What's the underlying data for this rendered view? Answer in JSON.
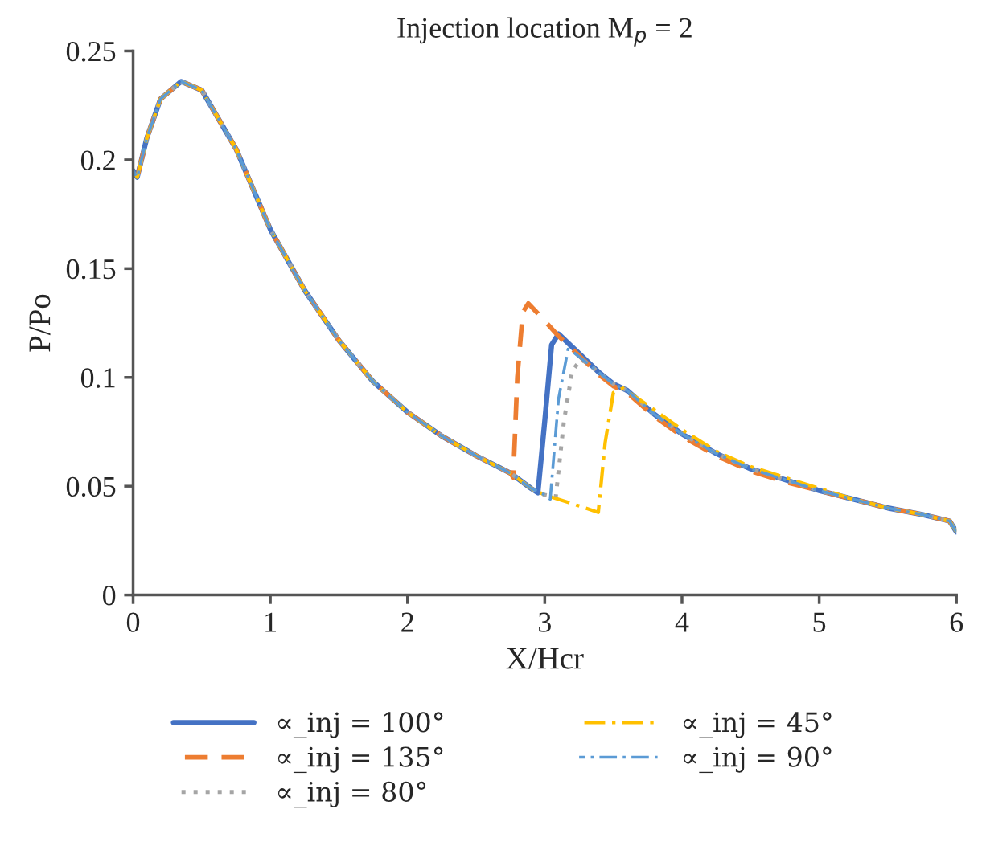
{
  "chart_data": {
    "type": "line",
    "title": "Injection location M$_{p}$ = 2",
    "xlabel": "X/Hcr",
    "ylabel": "P/Po",
    "xlim": [
      0,
      6
    ],
    "xticks": [
      0,
      1,
      2,
      3,
      4,
      5,
      6
    ],
    "ylim": [
      0,
      0.25
    ],
    "yticks": [
      0,
      0.05,
      0.1,
      0.15,
      0.2,
      0.25
    ],
    "grid": false,
    "legend": "bottom",
    "series": [
      {
        "name": "∝_inj = 100°",
        "color": "#4472c4",
        "line_style": "solid",
        "x": [
          0,
          0.03,
          0.1,
          0.2,
          0.35,
          0.5,
          0.75,
          1,
          1.25,
          1.5,
          1.75,
          2,
          2.25,
          2.5,
          2.75,
          2.9,
          2.95,
          3.0,
          3.05,
          3.1,
          3.2,
          3.3,
          3.4,
          3.5,
          3.6,
          3.8,
          4,
          4.25,
          4.5,
          4.75,
          5,
          5.25,
          5.5,
          5.75,
          5.95,
          6
        ],
        "values": [
          0.195,
          0.192,
          0.21,
          0.228,
          0.236,
          0.232,
          0.205,
          0.168,
          0.14,
          0.117,
          0.098,
          0.084,
          0.073,
          0.064,
          0.056,
          0.049,
          0.047,
          0.08,
          0.115,
          0.12,
          0.114,
          0.108,
          0.102,
          0.097,
          0.094,
          0.083,
          0.074,
          0.065,
          0.058,
          0.053,
          0.048,
          0.044,
          0.04,
          0.037,
          0.034,
          0.029
        ]
      },
      {
        "name": "∝_inj = 135°",
        "color": "#ed7d31",
        "line_style": "dashed",
        "x": [
          0,
          0.03,
          0.1,
          0.2,
          0.35,
          0.5,
          0.75,
          1,
          1.25,
          1.5,
          1.75,
          2,
          2.25,
          2.5,
          2.75,
          2.77,
          2.8,
          2.84,
          2.88,
          3.0,
          3.1,
          3.2,
          3.3,
          3.4,
          3.5,
          3.6,
          3.8,
          4,
          4.25,
          4.5,
          4.75,
          5,
          5.25,
          5.5,
          5.75,
          5.95,
          6
        ],
        "values": [
          0.195,
          0.192,
          0.21,
          0.228,
          0.236,
          0.232,
          0.205,
          0.168,
          0.14,
          0.117,
          0.098,
          0.084,
          0.073,
          0.064,
          0.056,
          0.054,
          0.1,
          0.13,
          0.134,
          0.126,
          0.119,
          0.113,
          0.107,
          0.101,
          0.096,
          0.093,
          0.082,
          0.073,
          0.064,
          0.057,
          0.052,
          0.048,
          0.044,
          0.04,
          0.037,
          0.034,
          0.029
        ]
      },
      {
        "name": "∝_inj = 80°",
        "color": "#a5a5a5",
        "line_style": "dotted",
        "x": [
          0,
          0.03,
          0.1,
          0.2,
          0.35,
          0.5,
          0.75,
          1,
          1.25,
          1.5,
          1.75,
          2,
          2.25,
          2.5,
          2.75,
          2.9,
          3.0,
          3.08,
          3.14,
          3.2,
          3.26,
          3.3,
          3.4,
          3.5,
          3.6,
          3.8,
          4,
          4.25,
          4.5,
          4.75,
          5,
          5.25,
          5.5,
          5.75,
          5.95,
          6
        ],
        "values": [
          0.195,
          0.192,
          0.21,
          0.228,
          0.236,
          0.232,
          0.205,
          0.168,
          0.14,
          0.117,
          0.098,
          0.084,
          0.073,
          0.064,
          0.056,
          0.049,
          0.046,
          0.045,
          0.08,
          0.103,
          0.108,
          0.107,
          0.102,
          0.097,
          0.094,
          0.083,
          0.074,
          0.065,
          0.058,
          0.053,
          0.048,
          0.044,
          0.04,
          0.037,
          0.034,
          0.029
        ]
      },
      {
        "name": "∝_inj = 45°",
        "color": "#ffc000",
        "line_style": "dashdot",
        "x": [
          0,
          0.03,
          0.1,
          0.2,
          0.35,
          0.5,
          0.75,
          1,
          1.25,
          1.5,
          1.75,
          2,
          2.25,
          2.5,
          2.75,
          2.9,
          3.0,
          3.2,
          3.39,
          3.44,
          3.5,
          3.57,
          3.8,
          4,
          4.25,
          4.5,
          4.75,
          5,
          5.25,
          5.5,
          5.75,
          5.95,
          6
        ],
        "values": [
          0.195,
          0.192,
          0.21,
          0.228,
          0.236,
          0.232,
          0.205,
          0.168,
          0.14,
          0.117,
          0.098,
          0.084,
          0.073,
          0.064,
          0.056,
          0.049,
          0.046,
          0.042,
          0.038,
          0.07,
          0.093,
          0.095,
          0.085,
          0.076,
          0.066,
          0.059,
          0.054,
          0.049,
          0.044,
          0.04,
          0.037,
          0.034,
          0.029
        ]
      },
      {
        "name": "∝_inj = 90°",
        "color": "#5b9bd5",
        "line_style": "dashdot",
        "x": [
          0,
          0.03,
          0.1,
          0.2,
          0.35,
          0.5,
          0.75,
          1,
          1.25,
          1.5,
          1.75,
          2,
          2.25,
          2.5,
          2.75,
          2.9,
          3.0,
          3.04,
          3.1,
          3.17,
          3.2,
          3.3,
          3.4,
          3.5,
          3.6,
          3.8,
          4,
          4.25,
          4.5,
          4.75,
          5,
          5.25,
          5.5,
          5.75,
          5.95,
          6
        ],
        "values": [
          0.195,
          0.192,
          0.21,
          0.228,
          0.236,
          0.232,
          0.205,
          0.168,
          0.14,
          0.117,
          0.098,
          0.084,
          0.073,
          0.064,
          0.056,
          0.049,
          0.046,
          0.044,
          0.09,
          0.113,
          0.112,
          0.107,
          0.102,
          0.097,
          0.094,
          0.083,
          0.074,
          0.065,
          0.058,
          0.053,
          0.048,
          0.044,
          0.04,
          0.037,
          0.034,
          0.029
        ]
      }
    ]
  }
}
